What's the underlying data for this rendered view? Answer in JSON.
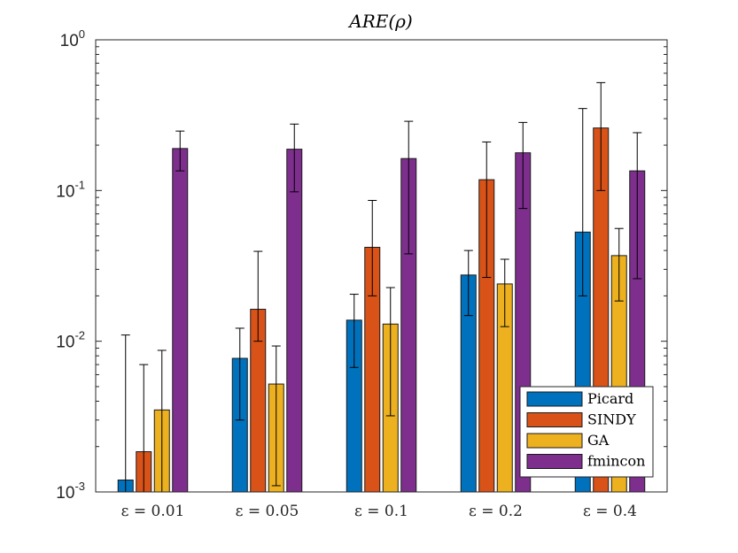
{
  "chart_data": {
    "type": "bar",
    "title": "ARE(ρ)",
    "xlabel": "",
    "ylabel": "",
    "yscale": "log",
    "ylim": [
      0.001,
      1
    ],
    "ytick_labels": [
      {
        "base": "10",
        "exp": "-3",
        "value": 0.001
      },
      {
        "base": "10",
        "exp": "-2",
        "value": 0.01
      },
      {
        "base": "10",
        "exp": "-1",
        "value": 0.1
      },
      {
        "base": "10",
        "exp": "0",
        "value": 1
      }
    ],
    "categories": [
      "ε = 0.01",
      "ε = 0.05",
      "ε = 0.1",
      "ε = 0.2",
      "ε = 0.4"
    ],
    "series": [
      {
        "name": "Picard",
        "color": "#0072BD",
        "values": [
          0.0012,
          0.0077,
          0.0138,
          0.0275,
          0.053
        ],
        "err_low": [
          0.001,
          0.003,
          0.0067,
          0.0148,
          0.02
        ],
        "err_high": [
          0.011,
          0.0122,
          0.0205,
          0.04,
          0.35
        ]
      },
      {
        "name": "SINDY",
        "color": "#D95319",
        "values": [
          0.00185,
          0.0163,
          0.042,
          0.118,
          0.26
        ],
        "err_low": [
          0.001,
          0.01,
          0.02,
          0.0265,
          0.1
        ],
        "err_high": [
          0.007,
          0.0395,
          0.086,
          0.21,
          0.52
        ]
      },
      {
        "name": "GA",
        "color": "#EDB120",
        "values": [
          0.0035,
          0.0052,
          0.013,
          0.024,
          0.037
        ],
        "err_low": [
          0.001,
          0.0011,
          0.0032,
          0.0125,
          0.0185
        ],
        "err_high": [
          0.0087,
          0.0093,
          0.0227,
          0.035,
          0.056
        ]
      },
      {
        "name": "fmincon",
        "color": "#7E2F8E",
        "values": [
          0.19,
          0.188,
          0.163,
          0.178,
          0.135
        ],
        "err_low": [
          0.135,
          0.098,
          0.038,
          0.076,
          0.026
        ],
        "err_high": [
          0.248,
          0.276,
          0.288,
          0.283,
          0.242
        ]
      }
    ],
    "legend": {
      "position": "bottom-right"
    },
    "grid": false
  }
}
